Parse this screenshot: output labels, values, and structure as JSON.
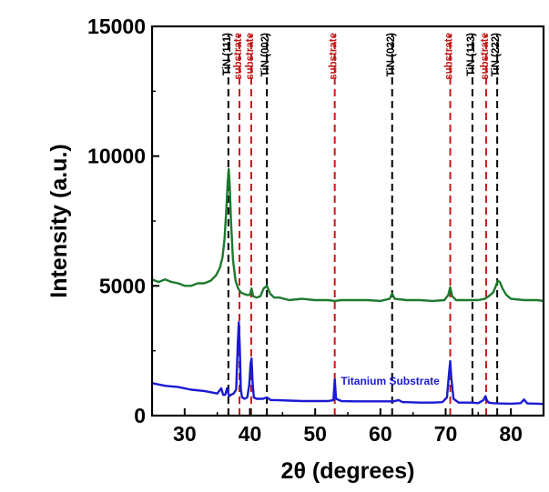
{
  "chart_data": {
    "type": "line",
    "xlabel": "2θ (degrees)",
    "ylabel": "Intensity (a.u.)",
    "xlim": [
      25,
      85
    ],
    "ylim": [
      0,
      15000
    ],
    "xticks": [
      30,
      40,
      50,
      60,
      70,
      80
    ],
    "yticks": [
      0,
      5000,
      10000,
      15000
    ],
    "xtick_labels": [
      "30",
      "40",
      "50",
      "60",
      "70",
      "80"
    ],
    "ytick_labels": [
      "0",
      "5000",
      "10000",
      "15000"
    ],
    "colors": {
      "tin_sample": "#1d7a2e",
      "titanium_substrate": "#1a1ad4",
      "tin_ref": "#000000",
      "substrate_ref": "#c41a1a"
    },
    "reference_lines": [
      {
        "x": 36.7,
        "label": "TiN (111)",
        "kind": "tin"
      },
      {
        "x": 38.4,
        "label": "substrate",
        "kind": "substrate"
      },
      {
        "x": 40.2,
        "label": "substrate",
        "kind": "substrate"
      },
      {
        "x": 42.6,
        "label": "TiN (002)",
        "kind": "tin"
      },
      {
        "x": 53.0,
        "label": "substrate",
        "kind": "substrate"
      },
      {
        "x": 61.8,
        "label": "TiN (022)",
        "kind": "tin"
      },
      {
        "x": 70.7,
        "label": "substrate",
        "kind": "substrate"
      },
      {
        "x": 74.1,
        "label": "TiN (113)",
        "kind": "tin"
      },
      {
        "x": 76.2,
        "label": "substrate",
        "kind": "substrate"
      },
      {
        "x": 77.9,
        "label": "TiN (222)",
        "kind": "tin"
      }
    ],
    "series": [
      {
        "name": "TiN sample",
        "color": "#1d7a2e",
        "x": [
          25,
          26,
          27,
          28,
          29,
          30,
          31,
          32,
          33,
          34,
          34.8,
          35.4,
          35.8,
          36.1,
          36.4,
          36.6,
          36.75,
          36.9,
          37.1,
          37.4,
          37.8,
          38.2,
          38.6,
          39.0,
          39.5,
          40.0,
          40.25,
          40.5,
          41,
          41.6,
          42.1,
          42.6,
          43.1,
          43.7,
          44.5,
          46,
          48,
          50,
          52,
          53,
          54,
          56,
          58,
          60,
          61.4,
          61.8,
          62.2,
          64,
          66,
          68,
          69.8,
          70.4,
          70.7,
          71.0,
          71.6,
          73,
          74.1,
          75,
          76,
          76.6,
          77.3,
          77.7,
          78.0,
          78.3,
          78.7,
          79.3,
          80,
          82,
          84,
          85
        ],
        "y": [
          5250,
          5150,
          5250,
          5150,
          5100,
          5000,
          5000,
          5100,
          5100,
          5200,
          5400,
          5700,
          6100,
          6800,
          8000,
          9000,
          9500,
          8900,
          7500,
          6000,
          5200,
          4900,
          4750,
          4700,
          4650,
          4650,
          4900,
          4600,
          4550,
          4600,
          4900,
          5000,
          4700,
          4550,
          4550,
          4450,
          4500,
          4450,
          4450,
          4420,
          4450,
          4450,
          4450,
          4420,
          4500,
          4700,
          4500,
          4450,
          4450,
          4420,
          4450,
          4650,
          4950,
          4600,
          4450,
          4450,
          4450,
          4450,
          4500,
          4600,
          4750,
          5000,
          5200,
          5150,
          4900,
          4650,
          4500,
          4450,
          4450,
          4420
        ]
      },
      {
        "name": "Titanium Substrate",
        "color": "#1a1ad4",
        "x": [
          25,
          27,
          29,
          31,
          33,
          34,
          35,
          35.6,
          35.9,
          36.2,
          36.5,
          36.8,
          37.1,
          37.5,
          37.9,
          38.15,
          38.3,
          38.45,
          38.6,
          38.8,
          39.2,
          39.6,
          39.9,
          40.1,
          40.25,
          40.4,
          40.6,
          41,
          41.5,
          42,
          42.6,
          43.2,
          44,
          46,
          48,
          50,
          52,
          52.8,
          53.0,
          53.2,
          54,
          56,
          58,
          60,
          62,
          62.8,
          63.4,
          64,
          66,
          68,
          69.5,
          70.2,
          70.55,
          70.7,
          70.85,
          71.2,
          72,
          73,
          74.1,
          75,
          75.8,
          76.1,
          76.3,
          76.6,
          77.2,
          78,
          80,
          81.5,
          82,
          82.5,
          84,
          85
        ],
        "y": [
          1250,
          1150,
          1100,
          1000,
          950,
          900,
          850,
          1050,
          800,
          800,
          1050,
          750,
          800,
          850,
          1000,
          2800,
          3600,
          2600,
          1000,
          700,
          650,
          700,
          1200,
          2000,
          2200,
          1300,
          700,
          650,
          650,
          650,
          700,
          600,
          600,
          580,
          560,
          560,
          560,
          600,
          1400,
          650,
          560,
          550,
          550,
          550,
          550,
          600,
          520,
          520,
          500,
          500,
          520,
          700,
          1700,
          2100,
          1500,
          650,
          500,
          500,
          500,
          480,
          600,
          750,
          600,
          500,
          480,
          470,
          460,
          480,
          620,
          470,
          460,
          450
        ]
      }
    ],
    "annotations": [
      {
        "text": "Titanium Substrate",
        "x": 61.5,
        "y": 1200
      }
    ]
  }
}
